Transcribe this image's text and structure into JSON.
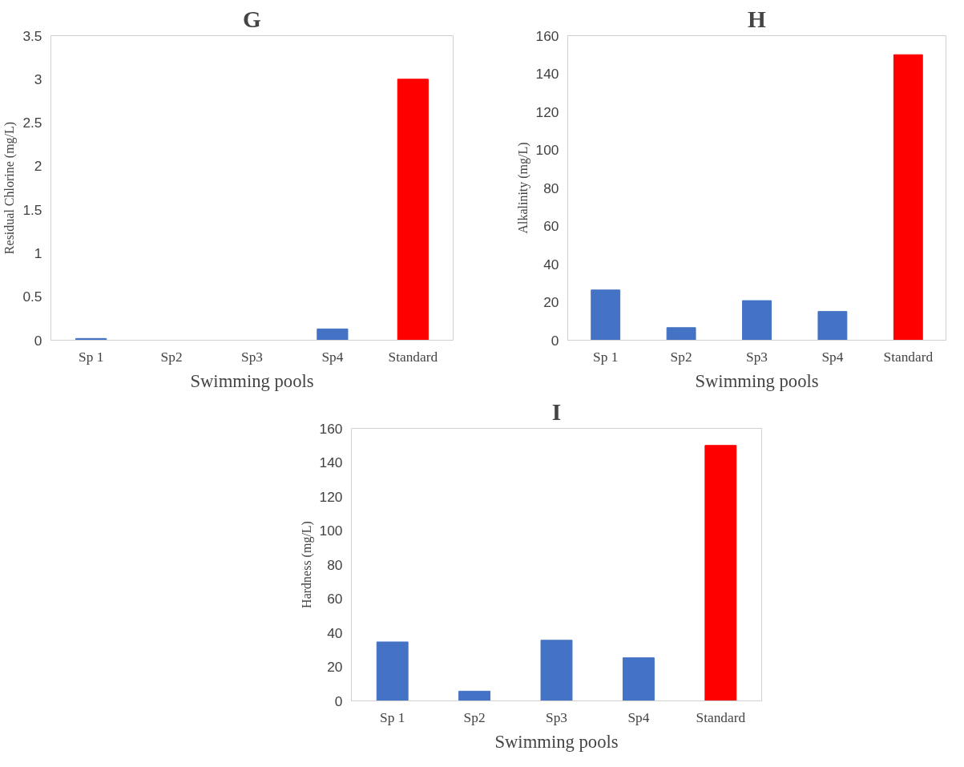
{
  "chart_data": [
    {
      "type": "bar",
      "title": "G",
      "xlabel": "Swimming pools",
      "ylabel": "Residual Chlorine (mg/L)",
      "categories": [
        "Sp 1",
        "Sp2",
        "Sp3",
        "Sp4",
        "Standard"
      ],
      "values": [
        0.02,
        0,
        0,
        0.13,
        3
      ],
      "colors": [
        "#4472c4",
        "#4472c4",
        "#4472c4",
        "#4472c4",
        "#ff0000"
      ],
      "ylim": [
        0,
        3.5
      ],
      "yticks": [
        0,
        0.5,
        1,
        1.5,
        2,
        2.5,
        3,
        3.5
      ],
      "grid": false
    },
    {
      "type": "bar",
      "title": "H",
      "xlabel": "Swimming pools",
      "ylabel": "Alkalinity (mg/L)",
      "categories": [
        "Sp 1",
        "Sp2",
        "Sp3",
        "Sp4",
        "Standard"
      ],
      "values": [
        26.4,
        6.6,
        20.8,
        15.1,
        150
      ],
      "colors": [
        "#4472c4",
        "#4472c4",
        "#4472c4",
        "#4472c4",
        "#ff0000"
      ],
      "ylim": [
        0,
        160
      ],
      "yticks": [
        0,
        20,
        40,
        60,
        80,
        100,
        120,
        140,
        160
      ],
      "grid": false
    },
    {
      "type": "bar",
      "title": "I",
      "xlabel": "Swimming pools",
      "ylabel": "Hardness (mg/L)",
      "categories": [
        "Sp 1",
        "Sp2",
        "Sp3",
        "Sp4",
        "Standard"
      ],
      "values": [
        34.6,
        5.7,
        35.6,
        25.3,
        150
      ],
      "colors": [
        "#4472c4",
        "#4472c4",
        "#4472c4",
        "#4472c4",
        "#ff0000"
      ],
      "ylim": [
        0,
        160
      ],
      "yticks": [
        0,
        20,
        40,
        60,
        80,
        100,
        120,
        140,
        160
      ],
      "grid": false
    }
  ]
}
